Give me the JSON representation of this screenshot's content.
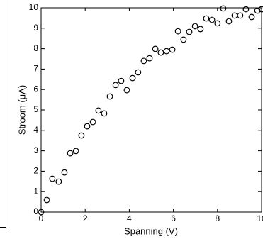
{
  "chart_data": {
    "type": "scatter",
    "x_label": "Spanning (V)",
    "y_label": "Stroom (μA)",
    "x": [
      0,
      0.26,
      0.51,
      0.8,
      1.06,
      1.32,
      1.58,
      1.83,
      2.09,
      2.35,
      2.6,
      2.86,
      3.12,
      3.38,
      3.63,
      3.89,
      4.15,
      4.4,
      4.66,
      4.92,
      5.18,
      5.43,
      5.69,
      5.95,
      6.21,
      6.46,
      6.72,
      6.98,
      7.23,
      7.49,
      7.75,
      8.0,
      8.26,
      8.52,
      8.78,
      9.03,
      9.29,
      9.55,
      9.81,
      10
    ],
    "values": [
      0,
      0.59,
      1.63,
      1.49,
      1.94,
      2.88,
      2.99,
      3.75,
      4.2,
      4.41,
      4.97,
      4.83,
      5.66,
      6.22,
      6.42,
      5.97,
      6.56,
      6.84,
      7.4,
      7.53,
      7.99,
      7.81,
      7.88,
      7.95,
      8.85,
      8.44,
      8.82,
      9.1,
      8.96,
      9.48,
      9.41,
      9.24,
      9.97,
      9.34,
      9.62,
      9.62,
      9.93,
      9.55,
      9.86,
      9.93
    ],
    "color": "#000000",
    "xlim": [
      0,
      10
    ],
    "xticks": [
      0,
      2,
      4,
      6,
      8,
      10
    ],
    "ylim": [
      0,
      10
    ],
    "yticks": [
      0,
      1,
      2,
      3,
      4,
      5,
      6,
      7,
      8,
      9,
      10
    ]
  }
}
